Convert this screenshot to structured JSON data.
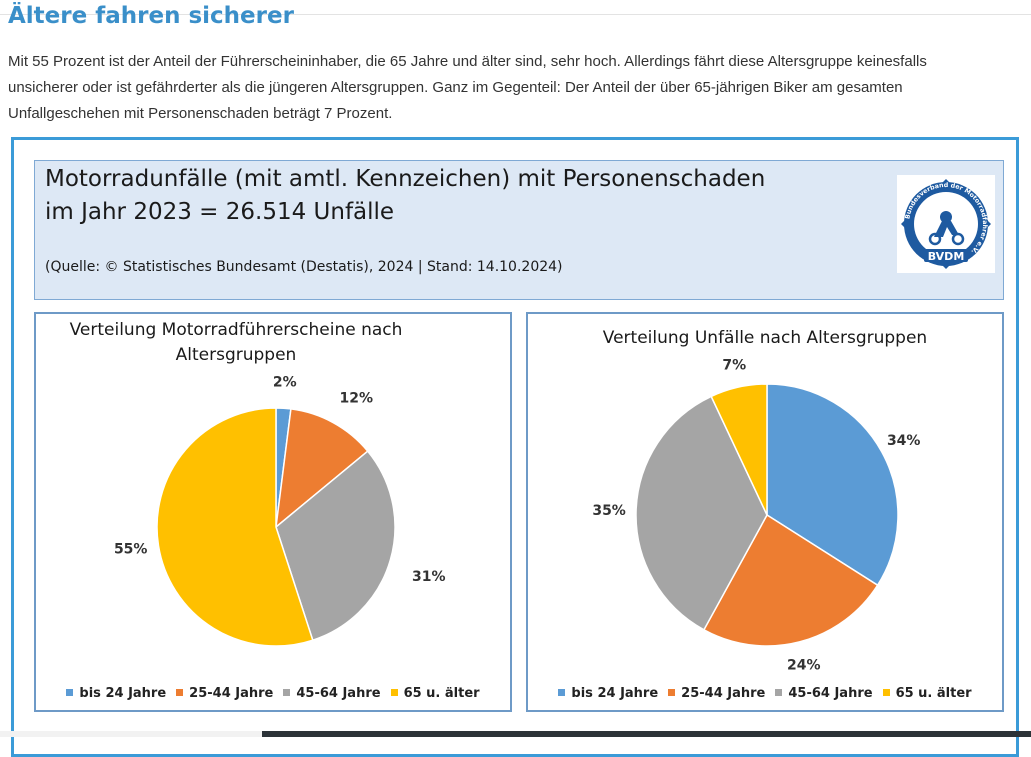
{
  "article": {
    "title": "Ältere fahren sicherer",
    "paragraph": "Mit 55 Prozent ist der Anteil der Führerscheininhaber, die 65 Jahre und älter sind, sehr hoch. Allerdings fährt diese Altersgruppe keinesfalls unsicherer oder ist gefährderter als die jüngeren Altersgruppen. Ganz im Gegenteil: Der Anteil der über 65-jährigen Biker am gesamten Unfallgeschehen mit Personenschaden beträgt 7 Prozent."
  },
  "header": {
    "line1": "Motorradunfälle (mit amtl. Kennzeichen) mit Personenschaden",
    "line2": "im Jahr 2023 = 26.514 Unfälle",
    "source": "(Quelle: © Statistisches Bundesamt (Destatis), 2024 | Stand: 14.10.2024)"
  },
  "logo": {
    "text": "BVDM",
    "ring_text": "Bundesverband der Motorradfahrer e.V."
  },
  "colors": {
    "accent": "#3b9bd8",
    "title": "#3a8fc9",
    "series": [
      "#5b9bd5",
      "#ed7d31",
      "#a5a5a5",
      "#ffc000"
    ]
  },
  "chart_data": [
    {
      "type": "pie",
      "title": "Verteilung Motorradführerscheine nach Altersgruppen",
      "title_lines": [
        "Verteilung Motorradführerscheine nach",
        "Altersgruppen"
      ],
      "categories": [
        "bis 24 Jahre",
        "25-44 Jahre",
        "45-64 Jahre",
        "65 u. älter"
      ],
      "values": [
        2,
        12,
        31,
        55
      ],
      "labels": [
        "2%",
        "12%",
        "31%",
        "55%"
      ],
      "legend": "bottom"
    },
    {
      "type": "pie",
      "title": "Verteilung Unfälle nach Altersgruppen",
      "title_lines": [
        "Verteilung Unfälle nach Altersgruppen"
      ],
      "categories": [
        "bis 24 Jahre",
        "25-44 Jahre",
        "45-64 Jahre",
        "65 u. älter"
      ],
      "values": [
        34,
        24,
        35,
        7
      ],
      "labels": [
        "34%",
        "24%",
        "35%",
        "7%"
      ],
      "legend": "bottom"
    }
  ]
}
